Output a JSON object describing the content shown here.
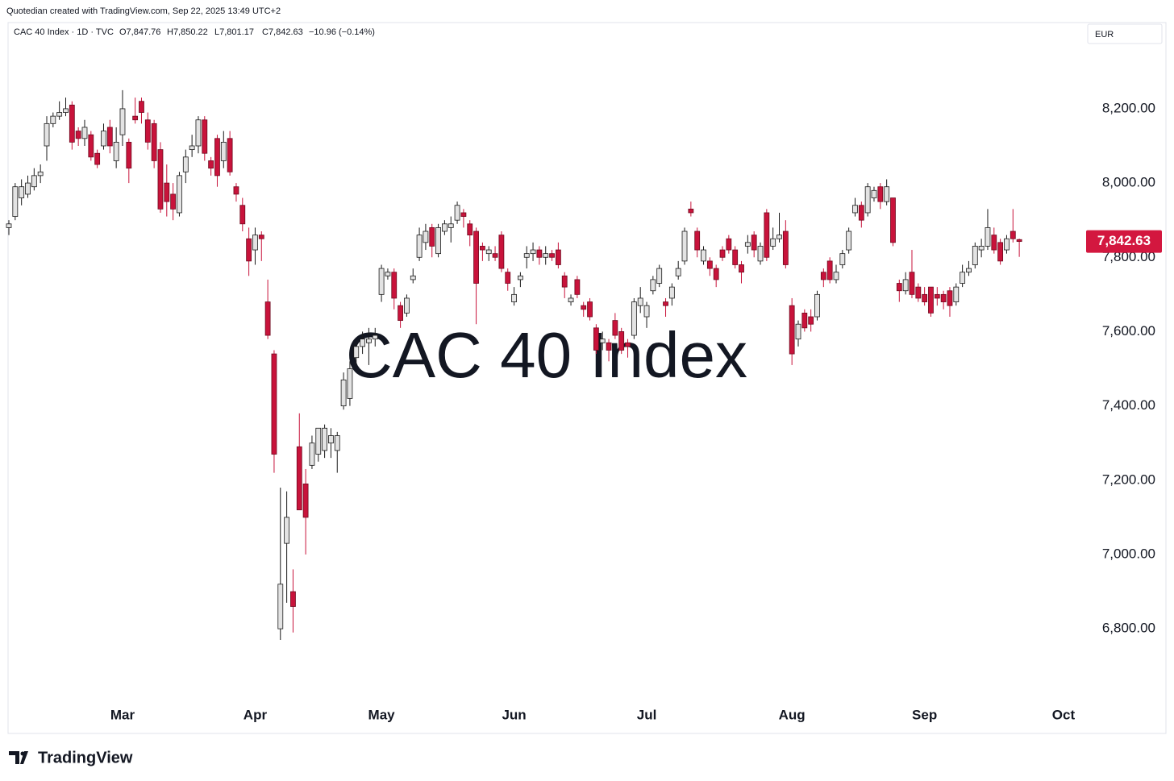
{
  "attribution": "Quotedian created with TradingView.com, Sep 22, 2025 13:49 UTC+2",
  "header": {
    "title": "CAC 40 Index · 1D · TVC",
    "ohlc_labels": [
      "O7,847.76",
      "H7,850.22",
      "L7,801.17",
      "C7,842.63",
      "−10.96 (−0.14%)"
    ]
  },
  "currency": "EUR",
  "logo": "TradingView",
  "chart_data": {
    "type": "candlestick",
    "watermark": "CAC 40 Index",
    "categories": [
      null,
      null,
      null,
      null,
      null,
      null,
      null,
      null,
      null,
      null,
      null,
      null,
      null,
      null,
      null,
      null,
      null,
      null,
      "Mar",
      null,
      null,
      null,
      null,
      null,
      null,
      null,
      null,
      null,
      null,
      null,
      null,
      null,
      null,
      null,
      null,
      null,
      null,
      null,
      null,
      "Apr",
      null,
      null,
      null,
      null,
      null,
      null,
      null,
      null,
      null,
      null,
      null,
      null,
      null,
      null,
      null,
      null,
      null,
      null,
      null,
      "May",
      null,
      null,
      null,
      null,
      null,
      null,
      null,
      null,
      null,
      null,
      null,
      null,
      null,
      null,
      null,
      null,
      null,
      null,
      null,
      null,
      "Jun",
      null,
      null,
      null,
      null,
      null,
      null,
      null,
      null,
      null,
      null,
      null,
      null,
      null,
      null,
      null,
      null,
      null,
      null,
      null,
      null,
      "Jul",
      null,
      null,
      null,
      null,
      null,
      null,
      null,
      null,
      null,
      null,
      null,
      null,
      null,
      null,
      null,
      null,
      null,
      null,
      null,
      null,
      null,
      null,
      "Aug",
      null,
      null,
      null,
      null,
      null,
      null,
      null,
      null,
      null,
      null,
      null,
      null,
      null,
      null,
      null,
      null,
      null,
      null,
      null,
      null,
      "Sep",
      null,
      null,
      null,
      null,
      null,
      null,
      null,
      null,
      null,
      null,
      null,
      null,
      null,
      null,
      null,
      null,
      null,
      null,
      null,
      null,
      null,
      "Oct"
    ],
    "open": [
      7880,
      7910,
      7960,
      7970,
      7990,
      8020,
      8100,
      8160,
      8180,
      8190,
      8210,
      8140,
      8120,
      8130,
      8080,
      8100,
      8150,
      8060,
      8130,
      8110,
      8180,
      8220,
      8170,
      8160,
      8090,
      8000,
      7970,
      7920,
      8030,
      8090,
      8100,
      8170,
      8060,
      8120,
      8060,
      8120,
      7990,
      7940,
      7850,
      7820,
      7860,
      7680,
      7540,
      6800,
      7030,
      6900,
      7290,
      7190,
      7240,
      7270,
      7280,
      7300,
      7280,
      7400,
      7420,
      7530,
      7560,
      7570,
      7580,
      7700,
      7750,
      7760,
      7670,
      7650,
      7740,
      7800,
      7840,
      7880,
      7810,
      7870,
      7880,
      7900,
      7920,
      7890,
      7870,
      7830,
      7810,
      7810,
      7860,
      7760,
      7680,
      7740,
      7800,
      7810,
      7820,
      7800,
      7810,
      7820,
      7750,
      7680,
      7740,
      7670,
      7680,
      7610,
      7570,
      7570,
      7630,
      7600,
      7570,
      7590,
      7670,
      7640,
      7710,
      7730,
      7680,
      7690,
      7750,
      7790,
      7930,
      7870,
      7790,
      7790,
      7770,
      7820,
      7850,
      7820,
      7780,
      7830,
      7860,
      7790,
      7920,
      7830,
      7850,
      7870,
      7670,
      7580,
      7650,
      7640,
      7640,
      7760,
      7790,
      7740,
      7780,
      7820,
      7920,
      7940,
      7920,
      7960,
      7990,
      7950,
      7960,
      7730,
      7710,
      7760,
      7720,
      7700,
      7720,
      7700,
      7700,
      7710,
      7680,
      7730,
      7760,
      7780,
      7820,
      7830,
      7860,
      7840,
      7820,
      7870,
      7847.76,
      null,
      null,
      null,
      null,
      null,
      null,
      null
    ],
    "high": [
      7900,
      8000,
      8010,
      8020,
      8040,
      8050,
      8180,
      8190,
      8220,
      8230,
      8220,
      8150,
      8170,
      8140,
      8090,
      8160,
      8170,
      8150,
      8250,
      8120,
      8230,
      8230,
      8190,
      8170,
      8110,
      8050,
      8000,
      8030,
      8090,
      8130,
      8180,
      8180,
      8070,
      8130,
      8140,
      8140,
      8000,
      7960,
      7880,
      7880,
      7870,
      7740,
      7550,
      7180,
      7170,
      6960,
      7380,
      7230,
      7320,
      7340,
      7350,
      7340,
      7330,
      7490,
      7520,
      7570,
      7600,
      7610,
      7610,
      7780,
      7770,
      7770,
      7680,
      7700,
      7770,
      7880,
      7890,
      7890,
      7890,
      7900,
      7910,
      7950,
      7930,
      7900,
      7880,
      7840,
      7830,
      7830,
      7870,
      7770,
      7720,
      7760,
      7830,
      7840,
      7830,
      7830,
      7820,
      7840,
      7760,
      7700,
      7750,
      7680,
      7690,
      7620,
      7600,
      7580,
      7650,
      7610,
      7580,
      7690,
      7720,
      7680,
      7750,
      7780,
      7690,
      7730,
      7790,
      7880,
      7950,
      7880,
      7830,
      7800,
      7780,
      7830,
      7860,
      7830,
      7790,
      7860,
      7870,
      7840,
      7930,
      7880,
      7920,
      7900,
      7690,
      7630,
      7660,
      7660,
      7710,
      7770,
      7800,
      7780,
      7820,
      7880,
      7960,
      7950,
      8000,
      7990,
      8000,
      8010,
      7960,
      7740,
      7760,
      7820,
      7730,
      7720,
      7720,
      7720,
      7710,
      7720,
      7730,
      7780,
      7790,
      7840,
      7850,
      7930,
      7880,
      7850,
      7860,
      7930,
      7850.22,
      null,
      null,
      null,
      null,
      null,
      null,
      null
    ],
    "low": [
      7860,
      7900,
      7940,
      7960,
      7980,
      8000,
      8060,
      8150,
      8170,
      8180,
      8090,
      8100,
      8100,
      8060,
      8040,
      8090,
      8080,
      8040,
      8100,
      8000,
      8160,
      8160,
      8090,
      8040,
      7920,
      7910,
      7900,
      7910,
      8000,
      8070,
      8080,
      8060,
      8020,
      7990,
      8040,
      8020,
      7950,
      7870,
      7750,
      7780,
      7790,
      7580,
      7220,
      6770,
      6870,
      6790,
      7120,
      7000,
      7230,
      7250,
      7260,
      7260,
      7220,
      7390,
      7400,
      7510,
      7540,
      7510,
      7560,
      7680,
      7740,
      7660,
      7610,
      7640,
      7730,
      7790,
      7820,
      7800,
      7800,
      7860,
      7840,
      7890,
      7880,
      7830,
      7620,
      7790,
      7790,
      7790,
      7760,
      7710,
      7670,
      7720,
      7770,
      7790,
      7780,
      7780,
      7790,
      7770,
      7690,
      7670,
      7690,
      7640,
      7630,
      7540,
      7550,
      7520,
      7580,
      7540,
      7530,
      7580,
      7650,
      7610,
      7700,
      7720,
      7640,
      7670,
      7740,
      7780,
      7910,
      7800,
      7780,
      7750,
      7720,
      7790,
      7810,
      7770,
      7730,
      7810,
      7800,
      7780,
      7790,
      7820,
      7840,
      7770,
      7510,
      7560,
      7600,
      7600,
      7630,
      7720,
      7730,
      7730,
      7770,
      7810,
      7910,
      7880,
      7910,
      7950,
      7930,
      7940,
      7830,
      7680,
      7700,
      7690,
      7680,
      7670,
      7640,
      7670,
      7660,
      7640,
      7670,
      7720,
      7750,
      7770,
      7800,
      7820,
      7810,
      7780,
      7810,
      7840,
      7801.17,
      null,
      null,
      null,
      null,
      null,
      null,
      null
    ],
    "close": [
      7890,
      7990,
      7990,
      8000,
      8020,
      8030,
      8160,
      8180,
      8190,
      8200,
      8110,
      8120,
      8150,
      8070,
      8050,
      8140,
      8100,
      8110,
      8200,
      8040,
      8170,
      8190,
      8110,
      8060,
      7930,
      7950,
      7930,
      8020,
      8070,
      8100,
      8170,
      8080,
      8040,
      8020,
      8110,
      8030,
      7970,
      7890,
      7790,
      7860,
      7850,
      7590,
      7270,
      6920,
      7100,
      6860,
      7120,
      7100,
      7300,
      7340,
      7340,
      7320,
      7320,
      7470,
      7500,
      7560,
      7580,
      7580,
      7590,
      7770,
      7760,
      7690,
      7630,
      7690,
      7750,
      7860,
      7870,
      7830,
      7880,
      7890,
      7890,
      7940,
      7910,
      7860,
      7730,
      7820,
      7820,
      7800,
      7770,
      7730,
      7700,
      7750,
      7810,
      7820,
      7800,
      7810,
      7800,
      7780,
      7720,
      7690,
      7700,
      7660,
      7640,
      7550,
      7580,
      7550,
      7590,
      7550,
      7560,
      7680,
      7690,
      7670,
      7740,
      7770,
      7670,
      7720,
      7770,
      7870,
      7920,
      7820,
      7820,
      7770,
      7740,
      7800,
      7820,
      7780,
      7760,
      7840,
      7820,
      7830,
      7800,
      7850,
      7860,
      7780,
      7540,
      7620,
      7610,
      7620,
      7700,
      7740,
      7740,
      7760,
      7810,
      7870,
      7940,
      7900,
      7990,
      7980,
      7950,
      7990,
      7840,
      7710,
      7740,
      7700,
      7690,
      7680,
      7650,
      7690,
      7680,
      7670,
      7720,
      7760,
      7770,
      7830,
      7830,
      7880,
      7820,
      7790,
      7850,
      7850,
      7842.63,
      null,
      null,
      null,
      null,
      null,
      null,
      null
    ],
    "last_value_label": "7,842.63",
    "ylim": [
      6605,
      8432
    ],
    "yticks": [
      {
        "value": 6800,
        "label": "6,800.00"
      },
      {
        "value": 7000,
        "label": "7,000.00"
      },
      {
        "value": 7200,
        "label": "7,200.00"
      },
      {
        "value": 7400,
        "label": "7,400.00"
      },
      {
        "value": 7600,
        "label": "7,600.00"
      },
      {
        "value": 7800,
        "label": "7,800.00"
      },
      {
        "value": 8000,
        "label": "8,000.00"
      },
      {
        "value": 8200,
        "label": "8,200.00"
      }
    ],
    "grid": false,
    "up_color": "#e3e3e3",
    "up_border": "#1a1a1a",
    "down_color": "#c8133b",
    "down_border": "#6e0a1f",
    "last_color": "#d3173f"
  }
}
